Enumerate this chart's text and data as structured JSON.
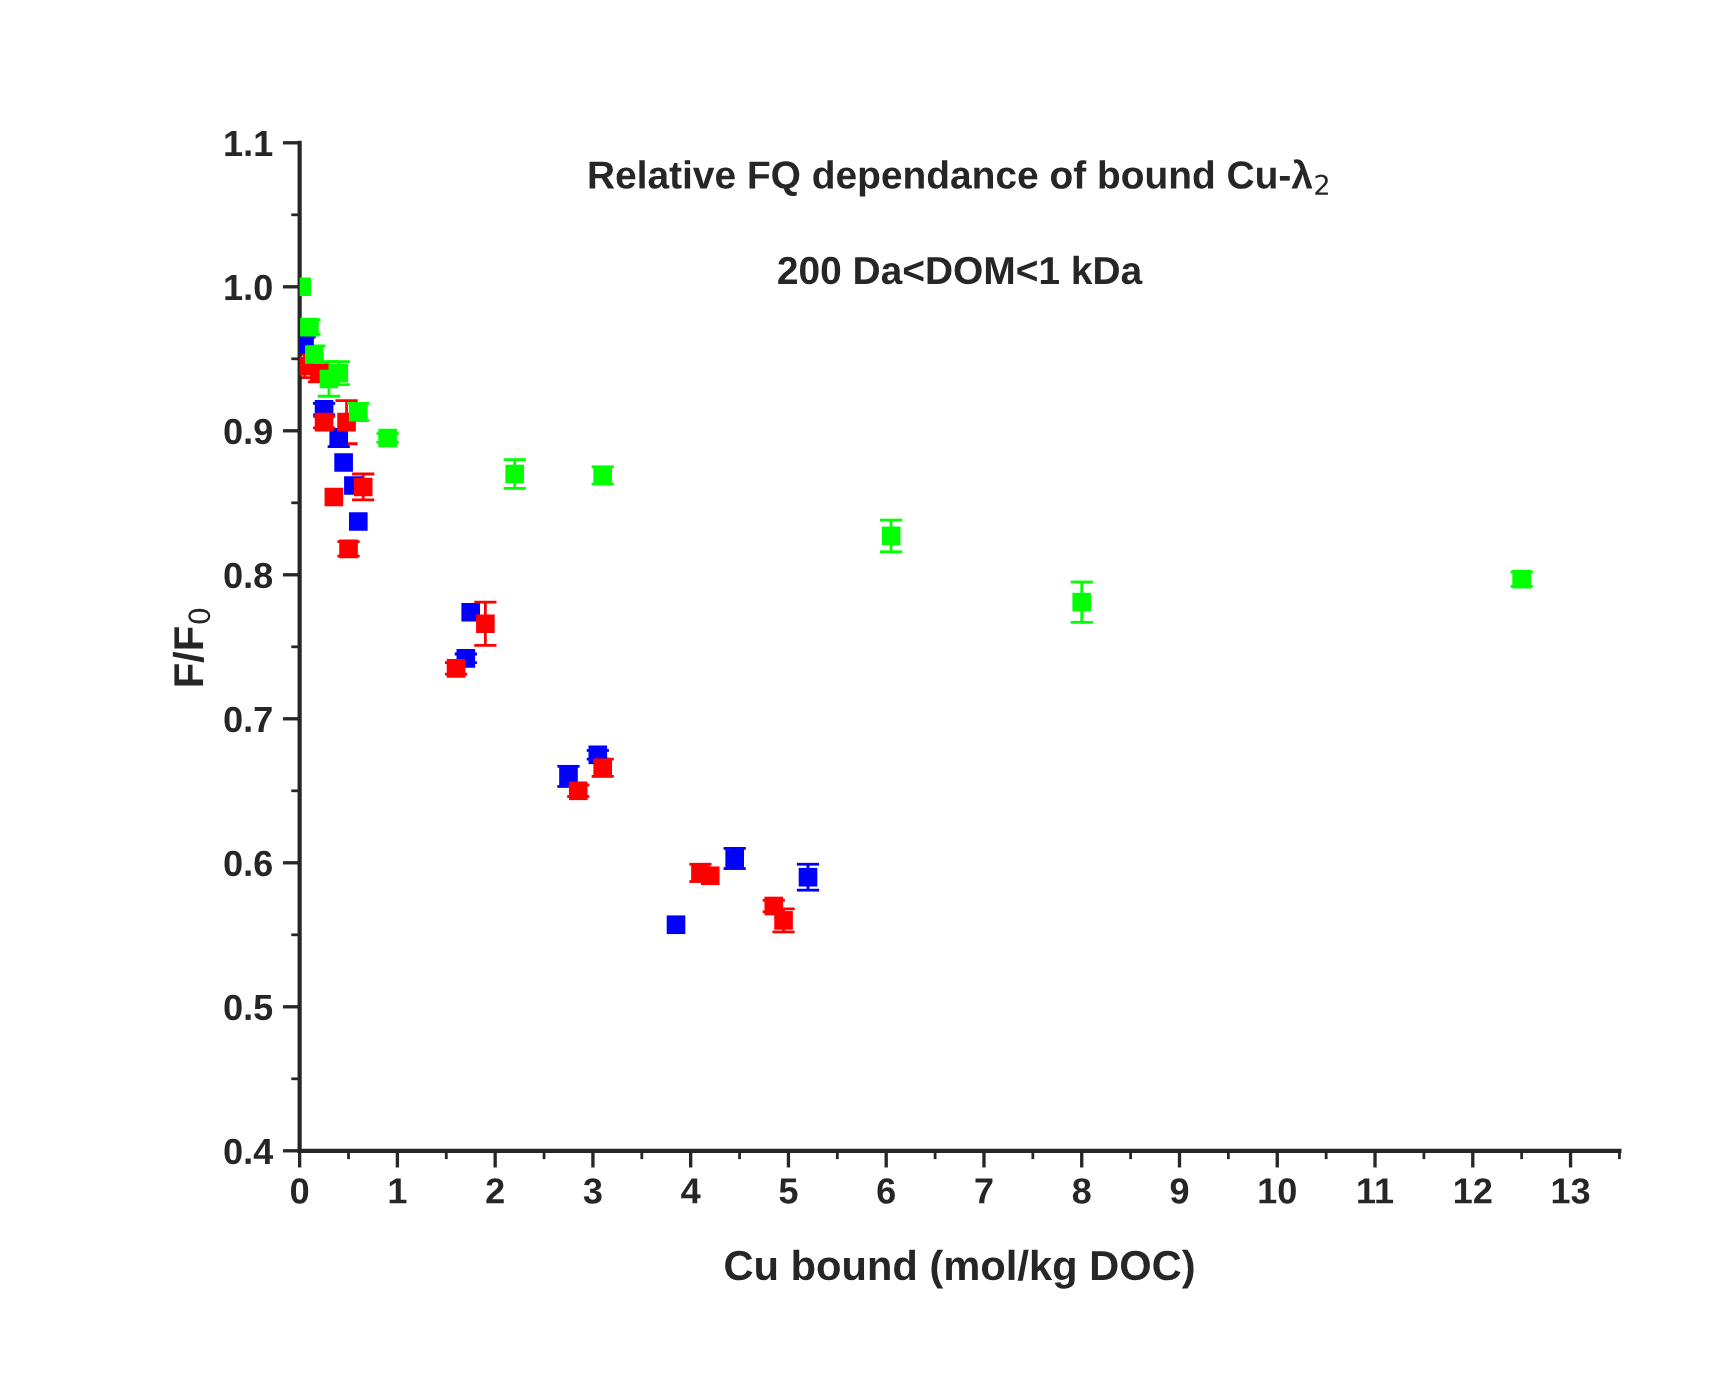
{
  "chart_data": {
    "type": "scatter",
    "title": "Relative FQ dependance of bound Cu-λ$_{2}$",
    "subtitle": "200 Da<DOM<1 kDa",
    "xlabel": "Cu bound (mol/kg DOC)",
    "ylabel": "F/F$_{0}$",
    "xlim": [
      0,
      13.5
    ],
    "xticks": [
      0,
      1,
      2,
      3,
      4,
      5,
      6,
      7,
      8,
      9,
      10,
      11,
      12,
      13
    ],
    "ylim": [
      0.4,
      1.1
    ],
    "yticks": [
      {
        "value": 0.4,
        "label": "0.4"
      },
      {
        "value": 0.5,
        "label": "0.5"
      },
      {
        "value": 0.6,
        "label": "0.6"
      },
      {
        "value": 0.7,
        "label": "0.7"
      },
      {
        "value": 0.8,
        "label": "0.8"
      },
      {
        "value": 0.9,
        "label": "0.9"
      },
      {
        "value": 1.0,
        "label": "1.0"
      },
      {
        "value": 1.1,
        "label": "1.1"
      }
    ],
    "grid": false,
    "legend": false,
    "marker": "square",
    "series": [
      {
        "color": "#0000ff",
        "x": [
          0.05,
          0.15,
          0.25,
          0.4,
          0.45,
          0.55,
          0.6,
          1.75,
          1.7,
          2.75,
          3.05,
          3.85,
          4.45,
          5.2
        ],
        "values": [
          0.96,
          null,
          0.915,
          0.895,
          0.878,
          0.862,
          0.837,
          0.774,
          0.742,
          0.66,
          0.675,
          0.557,
          0.603,
          0.59
        ],
        "errors": [
          0.005,
          null,
          0.004,
          0.006,
          null,
          null,
          null,
          null,
          0.003,
          0.007,
          0.003,
          null,
          0.007,
          0.009
        ]
      },
      {
        "color": "#ff0000",
        "x": [
          0.05,
          0.2,
          0.25,
          0.35,
          0.5,
          0.48,
          0.65,
          1.6,
          1.9,
          2.85,
          3.1,
          4.1,
          4.2,
          4.85,
          4.95
        ],
        "values": [
          0.945,
          0.94,
          0.906,
          0.854,
          0.818,
          0.906,
          0.861,
          0.735,
          0.766,
          0.65,
          0.666,
          0.593,
          0.591,
          0.57,
          0.56
        ],
        "errors": [
          0.008,
          0.006,
          0.004,
          null,
          0.005,
          0.015,
          0.009,
          0.004,
          0.015,
          0.004,
          0.006,
          0.006,
          null,
          0.004,
          0.008
        ]
      },
      {
        "color": "#00ff00",
        "x": [
          0.02,
          0.1,
          0.15,
          0.3,
          0.4,
          0.6,
          0.9,
          2.2,
          3.1,
          6.05,
          8.0,
          12.5
        ],
        "values": [
          1.0,
          0.972,
          0.953,
          0.936,
          0.94,
          0.913,
          0.895,
          0.87,
          0.869,
          0.827,
          0.781,
          0.797
        ],
        "errors": [
          null,
          0.005,
          0.006,
          0.012,
          0.008,
          0.006,
          0.003,
          0.01,
          0.006,
          0.011,
          0.014,
          0.005
        ]
      }
    ]
  }
}
